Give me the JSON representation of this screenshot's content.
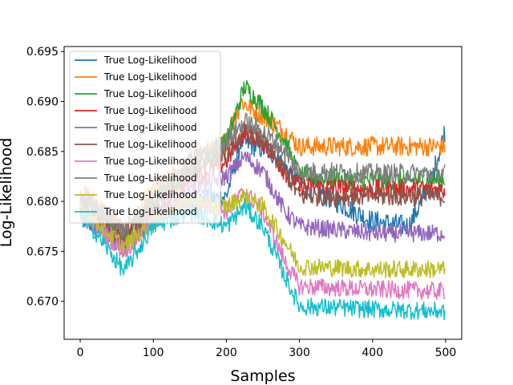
{
  "chart_data": {
    "type": "line",
    "xlabel": "Samples",
    "ylabel": "Log-Likelihood",
    "xlim": [
      -22,
      522
    ],
    "ylim": [
      0.6662,
      0.6955
    ],
    "xticks": [
      0,
      100,
      200,
      300,
      400,
      500
    ],
    "yticks": [
      0.67,
      0.675,
      0.68,
      0.685,
      0.69,
      0.695
    ],
    "ytick_labels": [
      "0.670",
      "0.675",
      "0.680",
      "0.685",
      "0.690",
      "0.695"
    ],
    "grid": false,
    "legend_position": "top-left",
    "n_samples": 500,
    "colors": [
      "#1f77b4",
      "#ff7f0e",
      "#2ca02c",
      "#d62728",
      "#9467bd",
      "#8c564b",
      "#e377c2",
      "#7f7f7f",
      "#bcbd22",
      "#17becf"
    ],
    "series": [
      {
        "name": "True Log-Likelihood",
        "noise": 0.0011,
        "keypoints": [
          [
            0,
            0.6785
          ],
          [
            20,
            0.6775
          ],
          [
            60,
            0.6755
          ],
          [
            100,
            0.6785
          ],
          [
            150,
            0.68
          ],
          [
            200,
            0.6805
          ],
          [
            220,
            0.686
          ],
          [
            260,
            0.685
          ],
          [
            300,
            0.682
          ],
          [
            350,
            0.68
          ],
          [
            400,
            0.678
          ],
          [
            450,
            0.6775
          ],
          [
            480,
            0.682
          ],
          [
            499,
            0.687
          ]
        ]
      },
      {
        "name": "True Log-Likelihood",
        "noise": 0.001,
        "keypoints": [
          [
            0,
            0.681
          ],
          [
            20,
            0.68
          ],
          [
            60,
            0.677
          ],
          [
            100,
            0.681
          ],
          [
            150,
            0.684
          ],
          [
            200,
            0.686
          ],
          [
            220,
            0.69
          ],
          [
            250,
            0.6885
          ],
          [
            280,
            0.687
          ],
          [
            300,
            0.6855
          ],
          [
            400,
            0.6855
          ],
          [
            499,
            0.6855
          ]
        ]
      },
      {
        "name": "True Log-Likelihood",
        "noise": 0.001,
        "keypoints": [
          [
            0,
            0.6795
          ],
          [
            20,
            0.679
          ],
          [
            60,
            0.6765
          ],
          [
            100,
            0.68
          ],
          [
            150,
            0.683
          ],
          [
            200,
            0.686
          ],
          [
            225,
            0.6915
          ],
          [
            250,
            0.6895
          ],
          [
            280,
            0.686
          ],
          [
            300,
            0.6825
          ],
          [
            400,
            0.682
          ],
          [
            499,
            0.6822
          ]
        ]
      },
      {
        "name": "True Log-Likelihood",
        "noise": 0.001,
        "keypoints": [
          [
            0,
            0.679
          ],
          [
            20,
            0.678
          ],
          [
            60,
            0.676
          ],
          [
            100,
            0.679
          ],
          [
            150,
            0.682
          ],
          [
            200,
            0.684
          ],
          [
            225,
            0.687
          ],
          [
            250,
            0.686
          ],
          [
            280,
            0.683
          ],
          [
            300,
            0.6815
          ],
          [
            400,
            0.6812
          ],
          [
            499,
            0.6812
          ]
        ]
      },
      {
        "name": "True Log-Likelihood",
        "noise": 0.0009,
        "keypoints": [
          [
            0,
            0.679
          ],
          [
            20,
            0.678
          ],
          [
            60,
            0.6755
          ],
          [
            100,
            0.6785
          ],
          [
            150,
            0.681
          ],
          [
            200,
            0.6825
          ],
          [
            225,
            0.6845
          ],
          [
            250,
            0.683
          ],
          [
            280,
            0.679
          ],
          [
            300,
            0.6775
          ],
          [
            400,
            0.6768
          ],
          [
            499,
            0.6768
          ]
        ]
      },
      {
        "name": "True Log-Likelihood",
        "noise": 0.001,
        "keypoints": [
          [
            0,
            0.68
          ],
          [
            20,
            0.679
          ],
          [
            60,
            0.6765
          ],
          [
            100,
            0.6795
          ],
          [
            150,
            0.683
          ],
          [
            200,
            0.685
          ],
          [
            225,
            0.687
          ],
          [
            250,
            0.686
          ],
          [
            280,
            0.683
          ],
          [
            300,
            0.6805
          ],
          [
            400,
            0.6805
          ],
          [
            499,
            0.6805
          ]
        ]
      },
      {
        "name": "True Log-Likelihood",
        "noise": 0.0009,
        "keypoints": [
          [
            0,
            0.6785
          ],
          [
            20,
            0.6775
          ],
          [
            60,
            0.675
          ],
          [
            100,
            0.678
          ],
          [
            150,
            0.68
          ],
          [
            200,
            0.679
          ],
          [
            225,
            0.681
          ],
          [
            250,
            0.679
          ],
          [
            280,
            0.674
          ],
          [
            300,
            0.6715
          ],
          [
            400,
            0.6712
          ],
          [
            499,
            0.671
          ]
        ]
      },
      {
        "name": "True Log-Likelihood",
        "noise": 0.001,
        "keypoints": [
          [
            0,
            0.6805
          ],
          [
            20,
            0.6795
          ],
          [
            60,
            0.677
          ],
          [
            100,
            0.68
          ],
          [
            150,
            0.684
          ],
          [
            200,
            0.686
          ],
          [
            225,
            0.688
          ],
          [
            250,
            0.687
          ],
          [
            280,
            0.685
          ],
          [
            300,
            0.683
          ],
          [
            400,
            0.6828
          ],
          [
            499,
            0.6828
          ]
        ]
      },
      {
        "name": "True Log-Likelihood",
        "noise": 0.0009,
        "keypoints": [
          [
            0,
            0.679
          ],
          [
            20,
            0.678
          ],
          [
            60,
            0.6755
          ],
          [
            100,
            0.678
          ],
          [
            150,
            0.68
          ],
          [
            200,
            0.6795
          ],
          [
            225,
            0.6805
          ],
          [
            250,
            0.6795
          ],
          [
            280,
            0.676
          ],
          [
            300,
            0.6735
          ],
          [
            400,
            0.6732
          ],
          [
            499,
            0.6732
          ]
        ]
      },
      {
        "name": "True Log-Likelihood",
        "noise": 0.0009,
        "keypoints": [
          [
            0,
            0.6785
          ],
          [
            20,
            0.677
          ],
          [
            60,
            0.673
          ],
          [
            100,
            0.6775
          ],
          [
            150,
            0.679
          ],
          [
            200,
            0.6775
          ],
          [
            225,
            0.6795
          ],
          [
            250,
            0.6775
          ],
          [
            280,
            0.6725
          ],
          [
            300,
            0.6695
          ],
          [
            400,
            0.6692
          ],
          [
            499,
            0.669
          ]
        ]
      }
    ]
  }
}
